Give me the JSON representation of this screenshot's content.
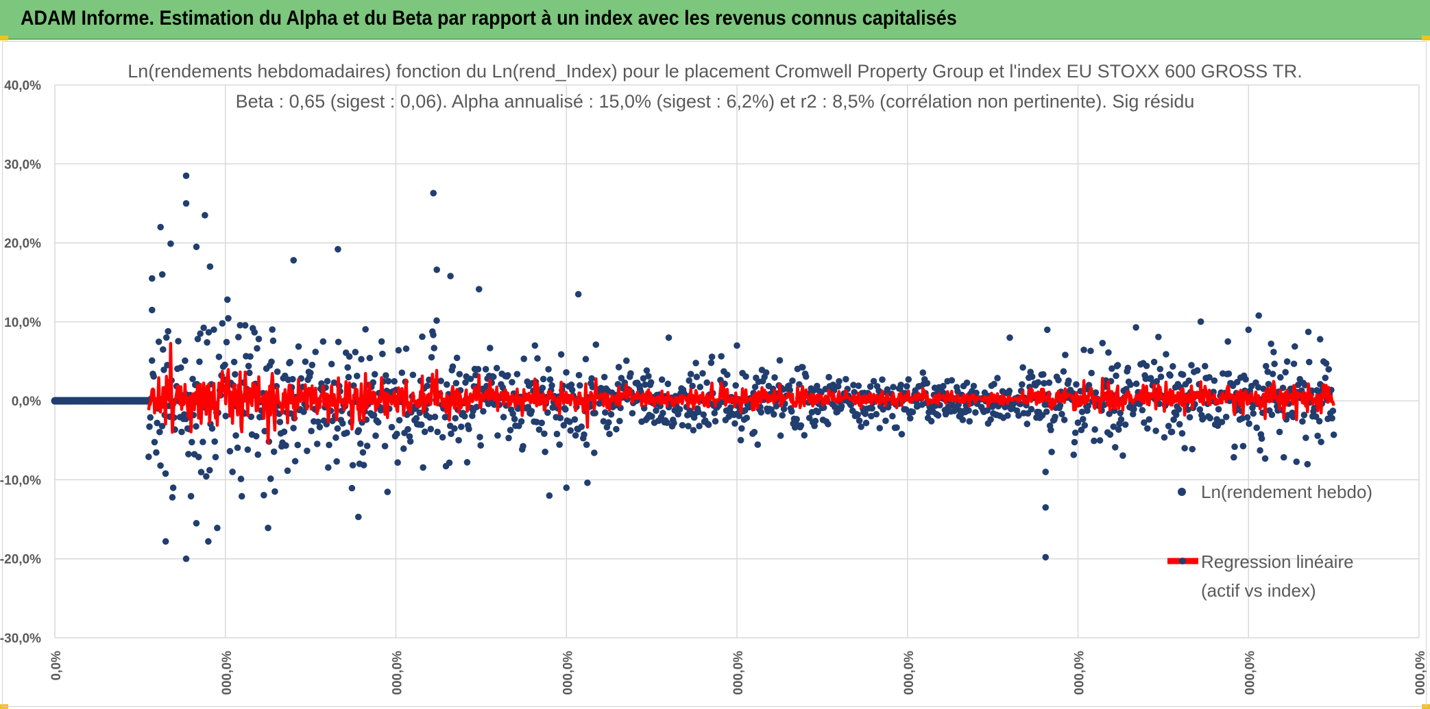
{
  "page": {
    "banner_title": "ADAM Informe. Estimation du Alpha et du Beta par rapport à un index avec les revenus connus capitalisés"
  },
  "colors": {
    "banner": "#7dc67d",
    "points": "#213e6f",
    "regression": "#ff0000",
    "grid": "#d9d9d9",
    "text": "#595959"
  },
  "chart_data": {
    "type": "scatter",
    "title_line1": "Ln(rendements hebdomadaires) fonction du Ln(rend_Index) pour le placement Cromwell Property Group et l'index EU STOXX 600 GROSS TR.",
    "title_line2": "Beta : 0,65 (sigest : 0,06). Alpha annualisé : 15,0% (sigest : 6,2%) et r2 : 8,5% (corrélation non pertinente). Sig résidu",
    "y_ticks": [
      "40,0%",
      "30,0%",
      "20,0%",
      "10,0%",
      "0,0%",
      "-10,0%",
      "-20,0%",
      "-30,0%"
    ],
    "x_ticks": [
      "0,0%",
      "000,0%",
      "000,0%",
      "000,0%",
      "000,0%",
      "000,0%",
      "000,0%",
      "000,0%",
      "000,0%"
    ],
    "ylim": [
      -0.3,
      0.4
    ],
    "xlim": [
      0,
      800
    ],
    "series": [
      {
        "name": "Ln(rendement hebdo)",
        "legend": "Ln(rendement hebdo)",
        "kind": "markers"
      },
      {
        "name": "Regression linéaire",
        "legend_line1": "Regression linéaire",
        "legend_line2": "(actif vs index)",
        "kind": "line"
      }
    ],
    "n_points": 1400,
    "flat_segment_end": 55,
    "data_end": 750,
    "outliers": [
      [
        57,
        0.155
      ],
      [
        57,
        0.115
      ],
      [
        62,
        0.22
      ],
      [
        63,
        0.16
      ],
      [
        77,
        0.285
      ],
      [
        77,
        0.25
      ],
      [
        83,
        0.195
      ],
      [
        88,
        0.235
      ],
      [
        91,
        0.17
      ],
      [
        65,
        -0.178
      ],
      [
        77,
        -0.2
      ],
      [
        83,
        -0.155
      ],
      [
        90,
        -0.178
      ],
      [
        140,
        0.178
      ],
      [
        166,
        0.192
      ],
      [
        222,
        0.263
      ],
      [
        224,
        0.166
      ],
      [
        232,
        0.158
      ],
      [
        178,
        -0.147
      ],
      [
        307,
        0.135
      ],
      [
        290,
        -0.12
      ],
      [
        300,
        -0.11
      ],
      [
        360,
        0.08
      ],
      [
        400,
        0.07
      ],
      [
        560,
        0.08
      ],
      [
        581,
        -0.135
      ],
      [
        581,
        -0.198
      ],
      [
        582,
        0.09
      ],
      [
        581,
        -0.09
      ],
      [
        634,
        0.093
      ],
      [
        706,
        0.108
      ],
      [
        700,
        0.09
      ],
      [
        742,
        0.078
      ]
    ]
  }
}
